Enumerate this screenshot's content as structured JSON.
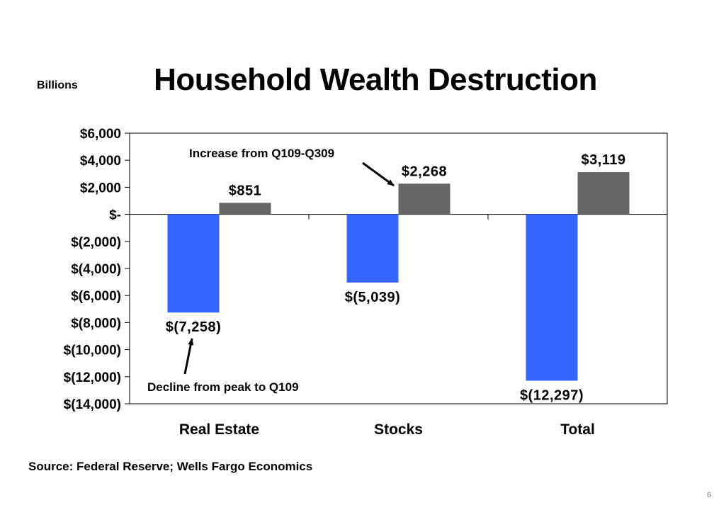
{
  "page": {
    "number": "6"
  },
  "chart_data": {
    "type": "bar",
    "title": "Household Wealth Destruction",
    "units_label": "Billions",
    "categories": [
      "Real Estate",
      "Stocks",
      "Total"
    ],
    "series": [
      {
        "values": [
          -7258,
          -5039,
          -12297
        ],
        "color": "#3366ff"
      },
      {
        "values": [
          851,
          2268,
          3119
        ],
        "color": "#666666"
      }
    ],
    "data_labels": [
      [
        "$(7,258)",
        "$(5,039)",
        "$(12,297)"
      ],
      [
        "$851",
        "$2,268",
        "$3,119"
      ]
    ],
    "ylim": [
      -14000,
      6000
    ],
    "yticks": [
      6000,
      4000,
      2000,
      0,
      -2000,
      -4000,
      -6000,
      -8000,
      -10000,
      -12000,
      -14000
    ],
    "ytick_labels": [
      "$6,000",
      "$4,000",
      "$2,000",
      "$-",
      "$(2,000)",
      "$(4,000)",
      "$(6,000)",
      "$(8,000)",
      "$(10,000)",
      "$(12,000)",
      "$(14,000)"
    ],
    "grid": false,
    "annotations": [
      {
        "text": "Increase from Q109-Q309",
        "points_to": "Stocks increase"
      },
      {
        "text": "Decline from peak to Q109",
        "points_to": "Real Estate decline"
      }
    ],
    "source": "Source: Federal Reserve; Wells Fargo Economics"
  }
}
